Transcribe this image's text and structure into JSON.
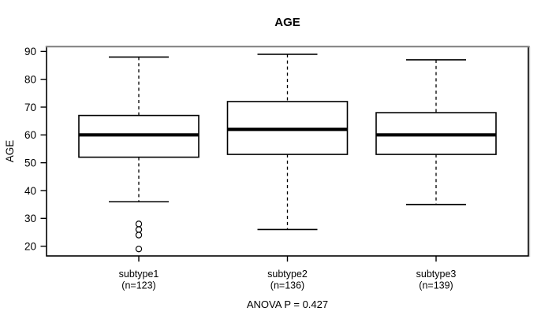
{
  "chart_data": {
    "type": "boxplot",
    "title": "AGE",
    "ylabel": "AGE",
    "xlabel": "",
    "annotation": "ANOVA P = 0.427",
    "ylim": [
      16.5,
      91.8
    ],
    "yticks": [
      20,
      30,
      40,
      50,
      60,
      70,
      80,
      90
    ],
    "grid": false,
    "legend": false,
    "categories": [
      "subtype1",
      "subtype2",
      "subtype3"
    ],
    "category_sublabels": [
      "(n=123)",
      "(n=136)",
      "(n=139)"
    ],
    "series": [
      {
        "name": "subtype1",
        "sublabel": "(n=123)",
        "n": 123,
        "whisker_low": 36,
        "q1": 52,
        "median": 60,
        "q3": 67,
        "whisker_high": 88,
        "outliers": [
          28,
          26,
          24,
          19
        ]
      },
      {
        "name": "subtype2",
        "sublabel": "(n=136)",
        "n": 136,
        "whisker_low": 26,
        "q1": 53,
        "median": 62,
        "q3": 72,
        "whisker_high": 89,
        "outliers": []
      },
      {
        "name": "subtype3",
        "sublabel": "(n=139)",
        "n": 139,
        "whisker_low": 35,
        "q1": 53,
        "median": 60,
        "q3": 68,
        "whisker_high": 87,
        "outliers": []
      }
    ],
    "colors": {
      "background": "#ffffff",
      "box_stroke": "#000000",
      "box_fill": "#ffffff",
      "median": "#000000",
      "whisker": "#000000",
      "outlier_stroke": "#000000",
      "text": "#000000",
      "frame": "#000000",
      "frame_top": "#8c8c8c",
      "frame_right_outer": "#b9b9b9"
    }
  }
}
